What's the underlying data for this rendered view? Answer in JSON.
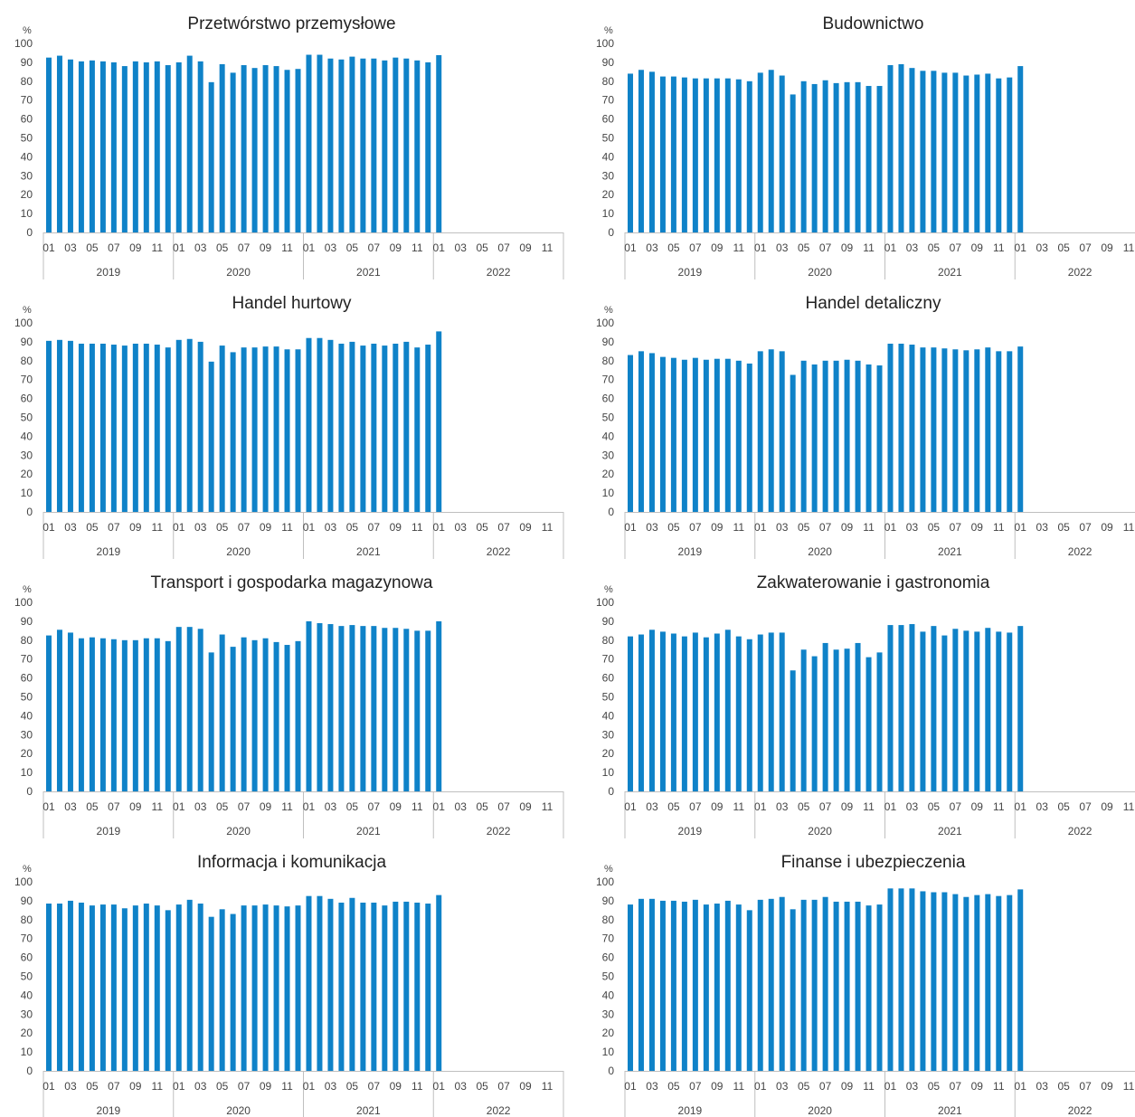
{
  "chart_data": [
    {
      "type": "bar",
      "title": "Przetwórstwo przemysłowe",
      "ylabel": "%",
      "ylim": [
        0,
        100
      ],
      "yticks": [
        "0",
        "10",
        "20",
        "30",
        "40",
        "50",
        "60",
        "70",
        "80",
        "90",
        "100"
      ],
      "years": [
        "2019",
        "2020",
        "2021",
        "2022"
      ],
      "month_ticks": [
        "01",
        "03",
        "05",
        "07",
        "09",
        "11"
      ],
      "categories_count": 48,
      "values": [
        92.5,
        93.5,
        91.5,
        90.5,
        91,
        90.5,
        90,
        88,
        90.5,
        90,
        90.5,
        88.5,
        90,
        93.5,
        90.5,
        79.5,
        89,
        84.5,
        88.5,
        87,
        88.5,
        88,
        86,
        86.5,
        94,
        94,
        92,
        91.5,
        93,
        92,
        92,
        91,
        92.5,
        92,
        91,
        90,
        93.8
      ]
    },
    {
      "type": "bar",
      "title": "Budownictwo",
      "ylabel": "%",
      "ylim": [
        0,
        100
      ],
      "yticks": [
        "0",
        "10",
        "20",
        "30",
        "40",
        "50",
        "60",
        "70",
        "80",
        "90",
        "100"
      ],
      "years": [
        "2019",
        "2020",
        "2021",
        "2022"
      ],
      "month_ticks": [
        "01",
        "03",
        "05",
        "07",
        "09",
        "11"
      ],
      "categories_count": 48,
      "values": [
        84,
        86,
        85,
        82.5,
        82.5,
        82,
        81.5,
        81.5,
        81.5,
        81.5,
        81,
        80,
        84.5,
        86,
        83,
        73,
        80,
        78.5,
        80.5,
        79,
        79.5,
        79.5,
        77.5,
        77.5,
        88.5,
        89,
        87,
        85.5,
        85.5,
        84.5,
        84.5,
        83,
        83.5,
        84,
        81.5,
        82,
        88
      ]
    },
    {
      "type": "bar",
      "title": "Handel hurtowy",
      "ylabel": "%",
      "ylim": [
        0,
        100
      ],
      "yticks": [
        "0",
        "10",
        "20",
        "30",
        "40",
        "50",
        "60",
        "70",
        "80",
        "90",
        "100"
      ],
      "years": [
        "2019",
        "2020",
        "2021",
        "2022"
      ],
      "month_ticks": [
        "01",
        "03",
        "05",
        "07",
        "09",
        "11"
      ],
      "categories_count": 48,
      "values": [
        90.5,
        91,
        90.5,
        89,
        89,
        89,
        88.5,
        88,
        89,
        89,
        88.5,
        87,
        91,
        91.5,
        90,
        79.5,
        88,
        84.5,
        87,
        87,
        87.5,
        87.5,
        86,
        86,
        92,
        92,
        91,
        89,
        90,
        88,
        89,
        88,
        89,
        90,
        87,
        88.5,
        95.5
      ]
    },
    {
      "type": "bar",
      "title": "Handel detaliczny",
      "ylabel": "%",
      "ylim": [
        0,
        100
      ],
      "yticks": [
        "0",
        "10",
        "20",
        "30",
        "40",
        "50",
        "60",
        "70",
        "80",
        "90",
        "100"
      ],
      "years": [
        "2019",
        "2020",
        "2021",
        "2022"
      ],
      "month_ticks": [
        "01",
        "03",
        "05",
        "07",
        "09",
        "11"
      ],
      "categories_count": 48,
      "values": [
        83,
        85,
        84,
        82,
        81.5,
        80.5,
        81.5,
        80.5,
        81,
        81,
        80,
        78.5,
        85,
        86,
        85,
        72.5,
        80,
        78,
        80,
        80,
        80.5,
        80,
        78,
        77.5,
        89,
        89,
        88.5,
        87,
        87,
        86.5,
        86,
        85.5,
        86,
        87,
        85,
        85,
        87.5
      ]
    },
    {
      "type": "bar",
      "title": "Transport i gospodarka magazynowa",
      "ylabel": "%",
      "ylim": [
        0,
        100
      ],
      "yticks": [
        "0",
        "10",
        "20",
        "30",
        "40",
        "50",
        "60",
        "70",
        "80",
        "90",
        "100"
      ],
      "years": [
        "2019",
        "2020",
        "2021",
        "2022"
      ],
      "month_ticks": [
        "01",
        "03",
        "05",
        "07",
        "09",
        "11"
      ],
      "categories_count": 48,
      "values": [
        82.5,
        85.5,
        84,
        81,
        81.5,
        81,
        80.5,
        80,
        80,
        81,
        81,
        79.5,
        87,
        87,
        86,
        73.5,
        83,
        76.5,
        81.5,
        80,
        81,
        79,
        77.5,
        79.5,
        90,
        89,
        88.5,
        87.5,
        88,
        87.5,
        87.5,
        86.5,
        86.5,
        86,
        85,
        85,
        90
      ]
    },
    {
      "type": "bar",
      "title": "Zakwaterowanie i gastronomia",
      "ylabel": "%",
      "ylim": [
        0,
        100
      ],
      "yticks": [
        "0",
        "10",
        "20",
        "30",
        "40",
        "50",
        "60",
        "70",
        "80",
        "90",
        "100"
      ],
      "years": [
        "2019",
        "2020",
        "2021",
        "2022"
      ],
      "month_ticks": [
        "01",
        "03",
        "05",
        "07",
        "09",
        "11"
      ],
      "categories_count": 48,
      "values": [
        82,
        83,
        85.5,
        84.5,
        83.5,
        82,
        84,
        81.5,
        83.5,
        85.5,
        82,
        80.5,
        83,
        84,
        84,
        64,
        75,
        71.5,
        78.5,
        75,
        75.5,
        78.5,
        71,
        73.5,
        88,
        88,
        88.5,
        84.5,
        87.5,
        82.5,
        86,
        85,
        84.5,
        86.5,
        84.5,
        84,
        87.5
      ]
    },
    {
      "type": "bar",
      "title": "Informacja i komunikacja",
      "ylabel": "%",
      "ylim": [
        0,
        100
      ],
      "yticks": [
        "0",
        "10",
        "20",
        "30",
        "40",
        "50",
        "60",
        "70",
        "80",
        "90",
        "100"
      ],
      "years": [
        "2019",
        "2020",
        "2021",
        "2022"
      ],
      "month_ticks": [
        "01",
        "03",
        "05",
        "07",
        "09",
        "11"
      ],
      "categories_count": 48,
      "values": [
        88.5,
        88.5,
        90,
        89,
        87.5,
        88,
        88,
        86,
        87.5,
        88.5,
        87.5,
        85,
        88,
        90.5,
        88.5,
        81.5,
        85.5,
        83,
        87.5,
        87.5,
        88,
        87.5,
        87,
        87.5,
        92.5,
        92.5,
        91,
        89,
        91.5,
        89,
        89,
        87.5,
        89.5,
        89.5,
        89,
        88.5,
        93
      ]
    },
    {
      "type": "bar",
      "title": "Finanse i ubezpieczenia",
      "ylabel": "%",
      "ylim": [
        0,
        100
      ],
      "yticks": [
        "0",
        "10",
        "20",
        "30",
        "40",
        "50",
        "60",
        "70",
        "80",
        "90",
        "100"
      ],
      "years": [
        "2019",
        "2020",
        "2021",
        "2022"
      ],
      "month_ticks": [
        "01",
        "03",
        "05",
        "07",
        "09",
        "11"
      ],
      "categories_count": 48,
      "values": [
        88,
        91,
        91,
        90,
        90,
        89.5,
        90.5,
        88,
        88.5,
        90,
        88,
        85,
        90.5,
        91,
        92,
        85.5,
        90.5,
        90.5,
        92,
        89.5,
        89.5,
        89.5,
        87.5,
        88,
        96.5,
        96.5,
        96.5,
        95,
        94.5,
        94.5,
        93.5,
        92,
        93,
        93.5,
        92.5,
        93,
        96
      ]
    }
  ],
  "colors": {
    "bar": "#0f82c8",
    "axis": "#bfbfbf",
    "text": "#444444",
    "title": "#222222"
  }
}
